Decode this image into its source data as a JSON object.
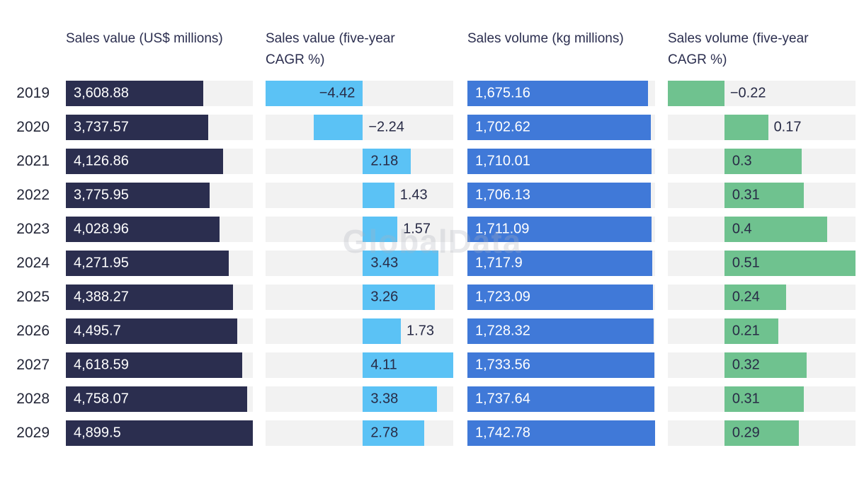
{
  "watermark": "GlobalData",
  "chart_data": {
    "type": "bar",
    "orientation": "horizontal",
    "grid": false,
    "track_color": "#F2F2F2",
    "categories": [
      "2019",
      "2020",
      "2021",
      "2022",
      "2023",
      "2024",
      "2025",
      "2026",
      "2027",
      "2028",
      "2029"
    ],
    "series": [
      {
        "name": "Sales value (US$ millions)",
        "color": "#2B2E4F",
        "label_style": "light",
        "x_range": [
          0,
          4899.5
        ],
        "values": [
          3608.88,
          3737.57,
          4126.86,
          3775.95,
          4028.96,
          4271.95,
          4388.27,
          4495.7,
          4618.59,
          4758.07,
          4899.5
        ],
        "labels": [
          "3,608.88",
          "3,737.57",
          "4,126.86",
          "3,775.95",
          "4,028.96",
          "4,271.95",
          "4,388.27",
          "4,495.7",
          "4,618.59",
          "4,758.07",
          "4,899.5"
        ]
      },
      {
        "name": "Sales value (five-year CAGR %)",
        "color": "#5BC2F5",
        "label_style": "dark",
        "x_range": [
          -4.42,
          4.11
        ],
        "values": [
          -4.42,
          -2.24,
          2.18,
          1.43,
          1.57,
          3.43,
          3.26,
          1.73,
          4.11,
          3.38,
          2.78
        ],
        "labels": [
          "−4.42",
          "−2.24",
          "2.18",
          "1.43",
          "1.57",
          "3.43",
          "3.26",
          "1.73",
          "4.11",
          "3.38",
          "2.78"
        ]
      },
      {
        "name": "Sales volume (kg millions)",
        "color": "#4079D8",
        "label_style": "light",
        "x_range": [
          0,
          1742.78
        ],
        "values": [
          1675.16,
          1702.62,
          1710.01,
          1706.13,
          1711.09,
          1717.9,
          1723.09,
          1728.32,
          1733.56,
          1737.64,
          1742.78
        ],
        "labels": [
          "1,675.16",
          "1,702.62",
          "1,710.01",
          "1,706.13",
          "1,711.09",
          "1,717.9",
          "1,723.09",
          "1,728.32",
          "1,733.56",
          "1,737.64",
          "1,742.78"
        ]
      },
      {
        "name": "Sales volume (five-year CAGR %)",
        "color": "#6FC28F",
        "label_style": "dark",
        "x_range": [
          -0.22,
          0.51
        ],
        "values": [
          -0.22,
          0.17,
          0.3,
          0.31,
          0.4,
          0.51,
          0.24,
          0.21,
          0.32,
          0.31,
          0.29
        ],
        "labels": [
          "−0.22",
          "0.17",
          "0.3",
          "0.31",
          "0.4",
          "0.51",
          "0.24",
          "0.21",
          "0.32",
          "0.31",
          "0.29"
        ]
      }
    ]
  }
}
